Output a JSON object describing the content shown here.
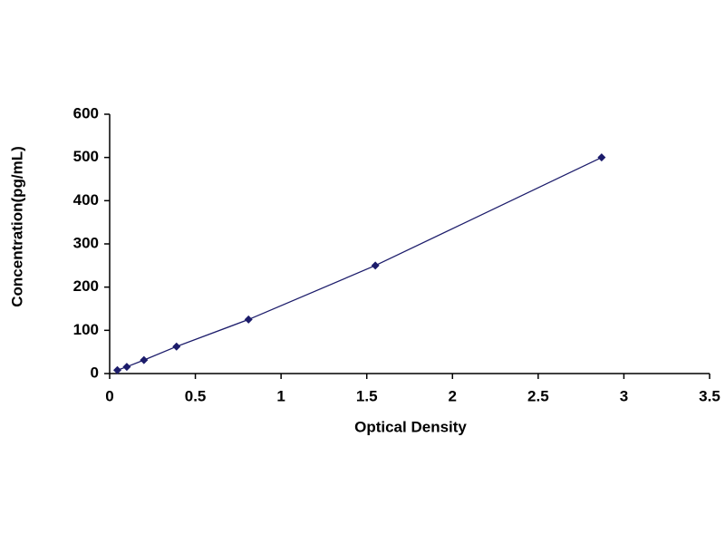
{
  "chart_data": {
    "type": "scatter",
    "x_label": "Optical Density",
    "y_label": "Concentration(pg/mL)",
    "x": [
      0.045,
      0.1,
      0.2,
      0.39,
      0.81,
      1.55,
      2.87
    ],
    "values": [
      7.8,
      15.6,
      31.25,
      62.5,
      125,
      250,
      500
    ],
    "color": "#1c1c6b",
    "line": true,
    "xlim": [
      0,
      3.5
    ],
    "ylim": [
      0,
      600
    ],
    "xticks": [
      0,
      0.5,
      1,
      1.5,
      2,
      2.5,
      3,
      3.5
    ],
    "yticks": [
      0,
      100,
      200,
      300,
      400,
      500,
      600
    ]
  }
}
